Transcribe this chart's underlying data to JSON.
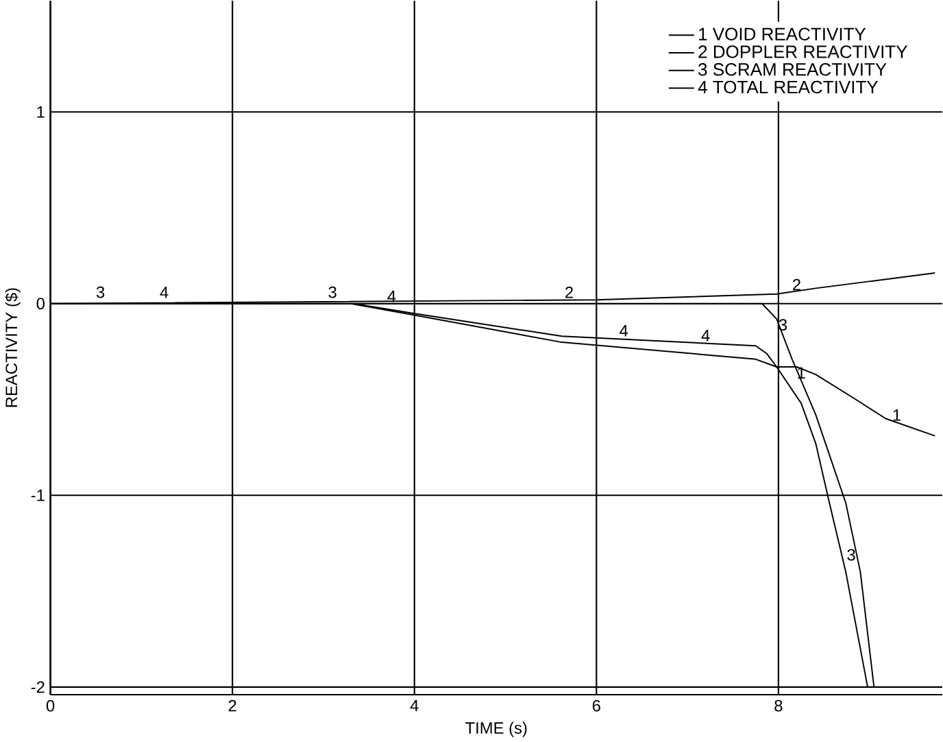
{
  "chart_data": {
    "type": "line",
    "xlabel": "TIME (s)",
    "ylabel": "REACTIVITY ($)",
    "xlim": [
      0,
      9.8
    ],
    "ylim": [
      -2.04,
      1.58
    ],
    "xticks": [
      0,
      2,
      4,
      6,
      8
    ],
    "yticks": [
      -2,
      -1,
      0,
      1
    ],
    "grid": true,
    "legend": "top right",
    "marker": "none",
    "line_style": "solid",
    "series": [
      {
        "name": "1 VOID REACTIVITY",
        "color": "#000000",
        "x": [
          0,
          3.3,
          4.0,
          5.6,
          7.75,
          7.98,
          8.2,
          8.41,
          8.85,
          9.18,
          9.72
        ],
        "values": [
          0,
          0,
          -0.06,
          -0.2,
          -0.29,
          -0.33,
          -0.33,
          -0.37,
          -0.5,
          -0.6,
          -0.69
        ]
      },
      {
        "name": "2 DOPPLER REACTIVITY",
        "color": "#000000",
        "x": [
          0,
          6.0,
          7.98,
          8.41,
          9.72
        ],
        "values": [
          0,
          0.02,
          0.05,
          0.08,
          0.16
        ]
      },
      {
        "name": "3 SCRAM REACTIVITY",
        "color": "#000000",
        "x": [
          0,
          7.82,
          7.98,
          8.15,
          8.41,
          8.74,
          8.9,
          9.05
        ],
        "values": [
          0,
          0,
          -0.08,
          -0.29,
          -0.58,
          -1.04,
          -1.4,
          -2.0
        ]
      },
      {
        "name": "4 TOTAL REACTIVITY",
        "color": "#000000",
        "x": [
          0,
          3.33,
          3.98,
          5.62,
          7.75,
          7.87,
          7.98,
          8.25,
          8.41,
          8.56,
          8.74,
          8.98
        ],
        "values": [
          0,
          0,
          -0.05,
          -0.17,
          -0.22,
          -0.26,
          -0.33,
          -0.52,
          -0.73,
          -1.04,
          -1.4,
          -2.0
        ]
      }
    ],
    "annotations": [
      {
        "text": "3",
        "x": 0.55,
        "y": 0.02
      },
      {
        "text": "4",
        "x": 1.25,
        "y": 0.02
      },
      {
        "text": "3",
        "x": 3.1,
        "y": 0.02
      },
      {
        "text": "4",
        "x": 3.75,
        "y": 0.0
      },
      {
        "text": "2",
        "x": 5.7,
        "y": 0.02
      },
      {
        "text": "1",
        "x": 9.3,
        "y": -0.62
      },
      {
        "text": "4",
        "x": 6.3,
        "y": -0.18
      },
      {
        "text": "2",
        "x": 8.2,
        "y": 0.06
      },
      {
        "text": "3",
        "x": 8.05,
        "y": -0.15
      },
      {
        "text": "1",
        "x": 8.25,
        "y": -0.4
      },
      {
        "text": "4",
        "x": 7.2,
        "y": -0.205
      },
      {
        "text": "3",
        "x": 8.8,
        "y": -1.35
      }
    ]
  }
}
